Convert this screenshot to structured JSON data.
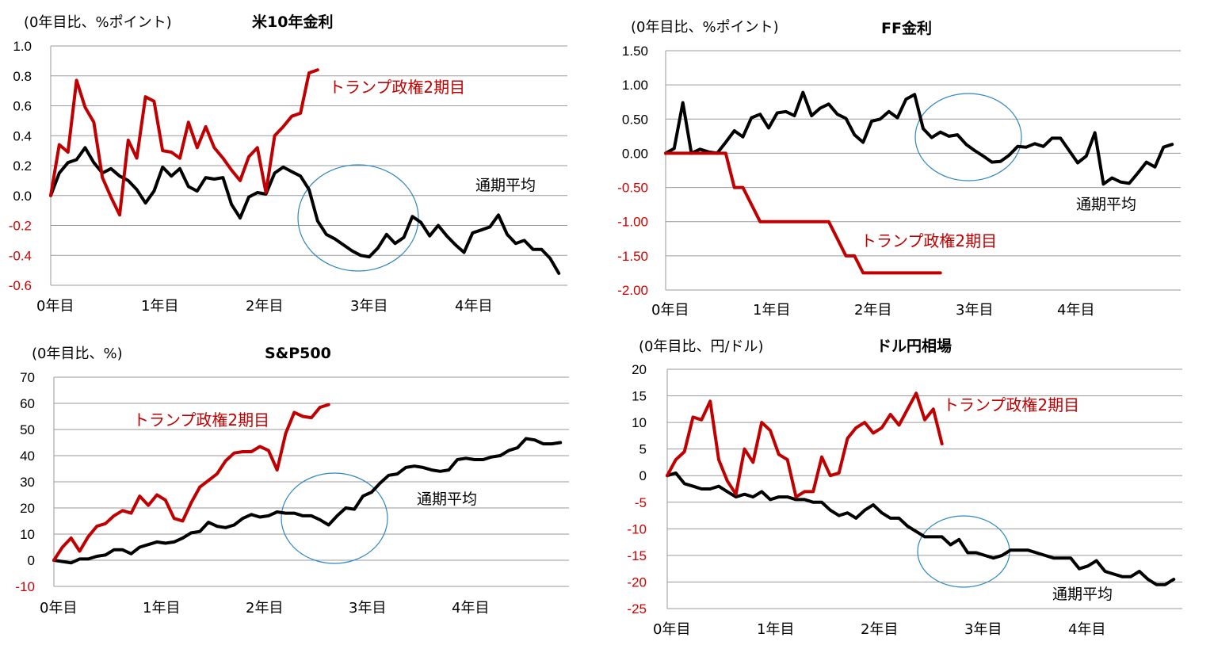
{
  "chart_data": [
    {
      "type": "line",
      "title": "米10年金利",
      "unit_label": "(0年目比、%ポイント)",
      "y_ticks": [
        "1.0",
        "0.8",
        "0.6",
        "0.4",
        "0.2",
        "0.0",
        "-0.2",
        "-0.4",
        "-0.6"
      ],
      "ylim": [
        -0.6,
        1.0
      ],
      "x_ticks": [
        "0年目",
        "1年目",
        "2年目",
        "3年目",
        "4年目"
      ],
      "xlim": [
        0,
        5
      ],
      "series": [
        {
          "name": "トランプ政権2期目",
          "color": "#c00000",
          "x": [
            0,
            0.083,
            0.167,
            0.25,
            0.333,
            0.417,
            0.5,
            0.583,
            0.667,
            0.75,
            0.833,
            0.917,
            1.0,
            1.083,
            1.167,
            1.25,
            1.333,
            1.417,
            1.5,
            1.583,
            1.667,
            1.75,
            1.833,
            1.917,
            2.0,
            2.083,
            2.167,
            2.25,
            2.333,
            2.417,
            2.5,
            2.583
          ],
          "y": [
            0.0,
            0.34,
            0.29,
            0.77,
            0.59,
            0.49,
            0.12,
            -0.01,
            -0.13,
            0.37,
            0.25,
            0.66,
            0.63,
            0.3,
            0.29,
            0.25,
            0.49,
            0.32,
            0.46,
            0.32,
            0.25,
            0.17,
            0.1,
            0.26,
            0.32,
            0.02,
            0.4,
            0.46,
            0.53,
            0.55,
            0.82,
            0.84
          ]
        },
        {
          "name": "通期平均",
          "color": "#000000",
          "x": [
            0,
            0.083,
            0.167,
            0.25,
            0.333,
            0.417,
            0.5,
            0.583,
            0.667,
            0.75,
            0.833,
            0.917,
            1.0,
            1.083,
            1.167,
            1.25,
            1.333,
            1.417,
            1.5,
            1.583,
            1.667,
            1.75,
            1.833,
            1.917,
            2.0,
            2.083,
            2.167,
            2.25,
            2.333,
            2.417,
            2.5,
            2.583,
            2.667,
            2.75,
            2.833,
            2.917,
            3.0,
            3.083,
            3.167,
            3.25,
            3.333,
            3.417,
            3.5,
            3.583,
            3.667,
            3.75,
            3.833,
            3.917,
            4.0,
            4.083,
            4.167,
            4.25,
            4.333,
            4.417,
            4.5,
            4.583,
            4.667,
            4.75,
            4.833,
            4.917
          ],
          "y": [
            0.0,
            0.15,
            0.22,
            0.24,
            0.32,
            0.22,
            0.15,
            0.18,
            0.13,
            0.1,
            0.04,
            -0.05,
            0.03,
            0.19,
            0.13,
            0.18,
            0.06,
            0.03,
            0.12,
            0.11,
            0.12,
            -0.06,
            -0.15,
            -0.01,
            0.02,
            0.01,
            0.15,
            0.19,
            0.16,
            0.13,
            0.04,
            -0.17,
            -0.26,
            -0.29,
            -0.33,
            -0.37,
            -0.4,
            -0.41,
            -0.35,
            -0.26,
            -0.32,
            -0.28,
            -0.14,
            -0.18,
            -0.27,
            -0.2,
            -0.27,
            -0.33,
            -0.38,
            -0.25,
            -0.23,
            -0.21,
            -0.13,
            -0.26,
            -0.32,
            -0.3,
            -0.36,
            -0.36,
            -0.42,
            -0.52
          ]
        }
      ],
      "annotations": [
        "トランプ政権2期目",
        "通期平均"
      ]
    },
    {
      "type": "line",
      "title": "FF金利",
      "unit_label": "(0年目比、%ポイント)",
      "y_ticks": [
        "1.50",
        "1.00",
        "0.50",
        "0.00",
        "-0.50",
        "-1.00",
        "-1.50",
        "-2.00"
      ],
      "ylim": [
        -2.0,
        1.5
      ],
      "x_ticks": [
        "0年目",
        "1年目",
        "2年目",
        "3年目",
        "4年目"
      ],
      "xlim": [
        0,
        5
      ],
      "series": [
        {
          "name": "トランプ政権2期目",
          "color": "#c00000",
          "x": [
            0,
            0.083,
            0.167,
            0.25,
            0.333,
            0.417,
            0.5,
            0.583,
            0.667,
            0.75,
            0.833,
            0.917,
            1.0,
            1.083,
            1.167,
            1.25,
            1.333,
            1.417,
            1.5,
            1.583,
            1.667,
            1.75,
            1.833,
            1.917,
            2.0,
            2.083,
            2.167,
            2.25,
            2.333,
            2.417,
            2.5,
            2.583,
            2.667
          ],
          "y": [
            0,
            0,
            0,
            0,
            0,
            0,
            0,
            0,
            -0.5,
            -0.5,
            -0.75,
            -1.0,
            -1.0,
            -1.0,
            -1.0,
            -1.0,
            -1.0,
            -1.0,
            -1.0,
            -1.0,
            -1.25,
            -1.5,
            -1.5,
            -1.75,
            -1.75,
            -1.75,
            -1.75,
            -1.75,
            -1.75,
            -1.75,
            -1.75,
            -1.75,
            -1.75
          ]
        },
        {
          "name": "通期平均",
          "color": "#000000",
          "x": [
            0,
            0.083,
            0.167,
            0.25,
            0.333,
            0.417,
            0.5,
            0.583,
            0.667,
            0.75,
            0.833,
            0.917,
            1.0,
            1.083,
            1.167,
            1.25,
            1.333,
            1.417,
            1.5,
            1.583,
            1.667,
            1.75,
            1.833,
            1.917,
            2.0,
            2.083,
            2.167,
            2.25,
            2.333,
            2.417,
            2.5,
            2.583,
            2.667,
            2.75,
            2.833,
            2.917,
            3.0,
            3.083,
            3.167,
            3.25,
            3.333,
            3.417,
            3.5,
            3.583,
            3.667,
            3.75,
            3.833,
            3.917,
            4.0,
            4.083,
            4.167,
            4.25,
            4.333,
            4.417,
            4.5,
            4.583,
            4.667,
            4.75,
            4.833,
            4.917
          ],
          "y": [
            0.0,
            0.07,
            0.74,
            0.0,
            0.06,
            0.02,
            0.0,
            0.16,
            0.33,
            0.24,
            0.52,
            0.57,
            0.37,
            0.59,
            0.61,
            0.55,
            0.89,
            0.55,
            0.66,
            0.72,
            0.57,
            0.51,
            0.27,
            0.16,
            0.47,
            0.5,
            0.61,
            0.52,
            0.79,
            0.86,
            0.36,
            0.23,
            0.31,
            0.25,
            0.27,
            0.13,
            0.04,
            -0.04,
            -0.13,
            -0.12,
            -0.03,
            0.1,
            0.09,
            0.14,
            0.1,
            0.22,
            0.22,
            0.04,
            -0.14,
            -0.04,
            0.3,
            -0.45,
            -0.36,
            -0.42,
            -0.44,
            -0.29,
            -0.13,
            -0.2,
            0.09,
            0.13
          ]
        }
      ],
      "annotations": [
        "トランプ政権2期目",
        "通期平均"
      ]
    },
    {
      "type": "line",
      "title": "S&P500",
      "unit_label": "(0年目比、%)",
      "y_ticks": [
        "70",
        "60",
        "50",
        "40",
        "30",
        "20",
        "10",
        "0",
        "-10"
      ],
      "ylim": [
        -10,
        70
      ],
      "x_ticks": [
        "0年目",
        "1年目",
        "2年目",
        "3年目",
        "4年目"
      ],
      "xlim": [
        0,
        5
      ],
      "series": [
        {
          "name": "トランプ政権2期目",
          "color": "#c00000",
          "x": [
            0,
            0.083,
            0.167,
            0.25,
            0.333,
            0.417,
            0.5,
            0.583,
            0.667,
            0.75,
            0.833,
            0.917,
            1.0,
            1.083,
            1.167,
            1.25,
            1.333,
            1.417,
            1.5,
            1.583,
            1.667,
            1.75,
            1.833,
            1.917,
            2.0,
            2.083,
            2.167,
            2.25,
            2.333,
            2.417,
            2.5,
            2.583,
            2.667
          ],
          "y": [
            0,
            5,
            8.5,
            3.5,
            9,
            13,
            14,
            17,
            19,
            18,
            24.5,
            21,
            25,
            23,
            16,
            15,
            22,
            28,
            30.5,
            33,
            38,
            41,
            41.5,
            41.5,
            43.5,
            42,
            34.5,
            48.5,
            56.5,
            55,
            54.5,
            58.5,
            59.5
          ]
        },
        {
          "name": "通期平均",
          "color": "#000000",
          "x": [
            0,
            0.083,
            0.167,
            0.25,
            0.333,
            0.417,
            0.5,
            0.583,
            0.667,
            0.75,
            0.833,
            0.917,
            1.0,
            1.083,
            1.167,
            1.25,
            1.333,
            1.417,
            1.5,
            1.583,
            1.667,
            1.75,
            1.833,
            1.917,
            2.0,
            2.083,
            2.167,
            2.25,
            2.333,
            2.417,
            2.5,
            2.583,
            2.667,
            2.75,
            2.833,
            2.917,
            3.0,
            3.083,
            3.167,
            3.25,
            3.333,
            3.417,
            3.5,
            3.583,
            3.667,
            3.75,
            3.833,
            3.917,
            4.0,
            4.083,
            4.167,
            4.25,
            4.333,
            4.417,
            4.5,
            4.583,
            4.667,
            4.75,
            4.833,
            4.917
          ],
          "y": [
            0,
            -0.5,
            -1,
            0.5,
            0.5,
            1.5,
            2,
            4,
            4,
            2.5,
            5,
            6,
            7,
            6.5,
            7,
            8.5,
            10.5,
            11,
            14.5,
            13,
            12.5,
            13.5,
            16,
            17.5,
            16.5,
            17,
            18.5,
            18,
            18,
            17,
            17,
            15.5,
            13.5,
            17,
            20,
            19.5,
            24.5,
            26,
            29.5,
            32.5,
            33,
            35.5,
            36,
            35.5,
            34.5,
            34,
            34.5,
            38.5,
            39,
            38.5,
            38.5,
            39.5,
            40,
            42,
            43,
            46.5,
            46,
            44.5,
            44.5,
            45
          ]
        }
      ],
      "annotations": [
        "トランプ政権2期目",
        "通期平均"
      ]
    },
    {
      "type": "line",
      "title": "ドル円相場",
      "unit_label": "(0年目比、円/ドル)",
      "y_ticks": [
        "20",
        "15",
        "10",
        "5",
        "0",
        "-5",
        "-10",
        "-15",
        "-20",
        "-25"
      ],
      "ylim": [
        -25,
        20
      ],
      "x_ticks": [
        "0年目",
        "1年目",
        "2年目",
        "3年目",
        "4年目"
      ],
      "xlim": [
        0,
        5
      ],
      "series": [
        {
          "name": "トランプ政権2期目",
          "color": "#c00000",
          "x": [
            0,
            0.083,
            0.167,
            0.25,
            0.333,
            0.417,
            0.5,
            0.583,
            0.667,
            0.75,
            0.833,
            0.917,
            1.0,
            1.083,
            1.167,
            1.25,
            1.333,
            1.417,
            1.5,
            1.583,
            1.667,
            1.75,
            1.833,
            1.917,
            2.0,
            2.083,
            2.167,
            2.25,
            2.333,
            2.417,
            2.5,
            2.583,
            2.667
          ],
          "y": [
            0,
            3,
            4.5,
            11,
            10.5,
            14,
            3,
            -1,
            -3.5,
            5,
            2.5,
            10,
            8.5,
            4,
            3,
            -4,
            -3,
            -3,
            3.5,
            0,
            0.5,
            7,
            9,
            10,
            8,
            9,
            11.5,
            9.5,
            12.5,
            15.5,
            10.5,
            12.5,
            6
          ]
        },
        {
          "name": "通期平均",
          "color": "#000000",
          "x": [
            0,
            0.083,
            0.167,
            0.25,
            0.333,
            0.417,
            0.5,
            0.583,
            0.667,
            0.75,
            0.833,
            0.917,
            1.0,
            1.083,
            1.167,
            1.25,
            1.333,
            1.417,
            1.5,
            1.583,
            1.667,
            1.75,
            1.833,
            1.917,
            2.0,
            2.083,
            2.167,
            2.25,
            2.333,
            2.417,
            2.5,
            2.583,
            2.667,
            2.75,
            2.833,
            2.917,
            3.0,
            3.083,
            3.167,
            3.25,
            3.333,
            3.417,
            3.5,
            3.583,
            3.667,
            3.75,
            3.833,
            3.917,
            4.0,
            4.083,
            4.167,
            4.25,
            4.333,
            4.417,
            4.5,
            4.583,
            4.667,
            4.75,
            4.833,
            4.917
          ],
          "y": [
            0,
            0.5,
            -1.5,
            -2,
            -2.5,
            -2.5,
            -2,
            -3,
            -4,
            -3.5,
            -4,
            -3,
            -4.5,
            -4,
            -4,
            -4.5,
            -4.5,
            -5,
            -5,
            -6.5,
            -7.5,
            -7,
            -8,
            -6.5,
            -5.5,
            -7,
            -8,
            -8,
            -9.5,
            -10.5,
            -11.5,
            -11.5,
            -11.5,
            -13,
            -12,
            -14.5,
            -14.5,
            -15,
            -15.5,
            -15,
            -14,
            -14,
            -14,
            -14.5,
            -15,
            -15.5,
            -15.5,
            -15.5,
            -17.5,
            -17,
            -16,
            -18,
            -18.5,
            -19,
            -19,
            -18,
            -19.5,
            -20.5,
            -20.5,
            -19.5
          ]
        }
      ],
      "annotations": [
        "トランプ政権2期目",
        "通期平均"
      ]
    }
  ]
}
